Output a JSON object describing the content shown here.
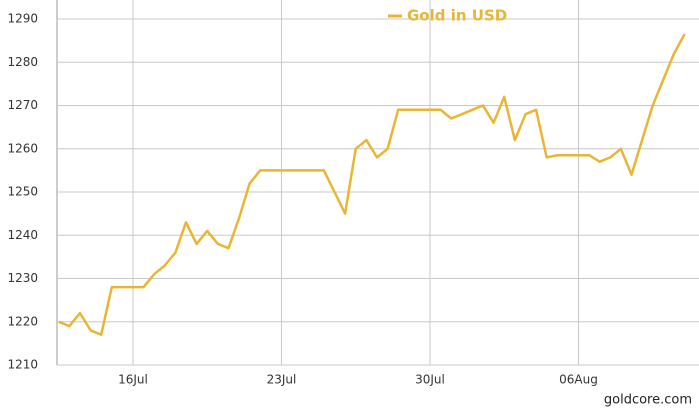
{
  "chart_data": {
    "type": "line",
    "categories": [
      null,
      null,
      null,
      null,
      null,
      null,
      null,
      "16Jul",
      null,
      null,
      null,
      null,
      null,
      null,
      null,
      null,
      null,
      null,
      null,
      null,
      null,
      "23Jul",
      null,
      null,
      null,
      null,
      null,
      null,
      null,
      null,
      null,
      null,
      null,
      null,
      null,
      "30Jul",
      null,
      null,
      null,
      null,
      null,
      null,
      null,
      null,
      null,
      null,
      null,
      null,
      null,
      "06Aug",
      null,
      null,
      null,
      null,
      null,
      null,
      null,
      null,
      null,
      null
    ],
    "series": [
      {
        "name": "Gold in USD",
        "color": "#e8b634",
        "values": [
          1220,
          1219,
          1222,
          1218,
          1217,
          1228,
          1228,
          1228,
          1228,
          1231,
          1233,
          1236,
          1243,
          1238,
          1241,
          1238,
          1237,
          1244,
          1252,
          1255,
          1255,
          1255,
          1255,
          1255,
          1255,
          1255,
          1250,
          1245,
          1260,
          1262,
          1258,
          1260,
          1269,
          1269,
          1269,
          1269,
          1269,
          1267,
          1268,
          1269,
          1270,
          1266,
          1272,
          1262,
          1268,
          1269,
          1258,
          1258.5,
          1258.5,
          1258.5,
          1258.5,
          1257,
          1258,
          1260,
          1254,
          1262,
          1270,
          1276,
          1282,
          1286.5
        ]
      }
    ],
    "ylim": [
      1210,
      1290
    ],
    "yticks": [
      1210,
      1220,
      1230,
      1240,
      1250,
      1260,
      1270,
      1280,
      1290
    ],
    "grid": true,
    "source": "goldcore.com"
  }
}
